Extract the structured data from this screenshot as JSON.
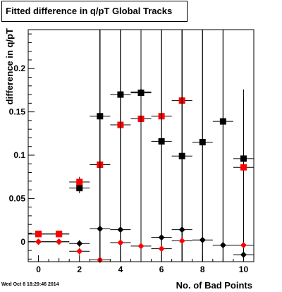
{
  "chart_data": {
    "type": "scatter",
    "title": "Fitted difference in q/pT  Global Tracks",
    "xlabel": "No. of Bad Points",
    "ylabel": "difference in q/pT",
    "xlim": [
      -0.5,
      10.5
    ],
    "ylim": [
      -0.023,
      0.245
    ],
    "xticks": [
      0,
      2,
      4,
      6,
      8,
      10
    ],
    "yticks": [
      0,
      0.05,
      0.1,
      0.15,
      0.2
    ],
    "ytick_labels": [
      "0",
      "0.05",
      "0.1",
      "0.15",
      "0.2"
    ],
    "grid": false,
    "series": [
      {
        "marker": "square",
        "color": "#000000",
        "points": [
          {
            "x": 0,
            "y": 0.009,
            "ex": 0.5,
            "ey": 0.002
          },
          {
            "x": 1,
            "y": 0.009,
            "ex": 0.5,
            "ey": 0.002
          },
          {
            "x": 2,
            "y": 0.062,
            "ex": 0.5,
            "ey": 0.006
          },
          {
            "x": 3,
            "y": 0.145,
            "ex": 0.5,
            "ey": 0.3
          },
          {
            "x": 4,
            "y": 0.17,
            "ex": 0.5,
            "ey": 0.3
          },
          {
            "x": 5,
            "y": 0.172,
            "ex": 0.5,
            "ey": 0.3
          },
          {
            "x": 6,
            "y": 0.116,
            "ex": 0.5,
            "ey": 0.3
          },
          {
            "x": 7,
            "y": 0.099,
            "ex": 0.5,
            "ey": 0.3
          },
          {
            "x": 8,
            "y": 0.115,
            "ex": 0.5,
            "ey": 0.3
          },
          {
            "x": 9,
            "y": 0.139,
            "ex": 0.5,
            "ey": 0.3
          },
          {
            "x": 10,
            "y": 0.096,
            "ex": 0.5,
            "ey": 0.08
          }
        ]
      },
      {
        "marker": "square",
        "color": "#ff0000",
        "points": [
          {
            "x": 0,
            "y": 0.009,
            "ex": 0.5,
            "ey": 0.002
          },
          {
            "x": 1,
            "y": 0.009,
            "ex": 0.5,
            "ey": 0.002
          },
          {
            "x": 2,
            "y": 0.069,
            "ex": 0.5,
            "ey": 0.006
          },
          {
            "x": 3,
            "y": 0.089,
            "ex": 0.5,
            "ey": 0.3
          },
          {
            "x": 4,
            "y": 0.135,
            "ex": 0.5,
            "ey": 0.3
          },
          {
            "x": 5,
            "y": 0.142,
            "ex": 0.5,
            "ey": 0.3
          },
          {
            "x": 6,
            "y": 0.145,
            "ex": 0.5,
            "ey": 0.3
          },
          {
            "x": 7,
            "y": 0.163,
            "ex": 0.5,
            "ey": 0.3
          },
          {
            "x": 10,
            "y": 0.086,
            "ex": 0.5,
            "ey": 0.08
          }
        ]
      },
      {
        "marker": "diamond",
        "color": "#000000",
        "points": [
          {
            "x": 0,
            "y": 0.0,
            "ex": 0.5,
            "ey": 0.001
          },
          {
            "x": 1,
            "y": 0.0,
            "ex": 0.5,
            "ey": 0.001
          },
          {
            "x": 2,
            "y": -0.002,
            "ex": 0.5,
            "ey": 0.004
          },
          {
            "x": 3,
            "y": 0.015,
            "ex": 0.5,
            "ey": 0.3
          },
          {
            "x": 4,
            "y": 0.014,
            "ex": 0.5,
            "ey": 0.3
          },
          {
            "x": 5,
            "y": 0.173,
            "ex": 0.5,
            "ey": 0.3
          },
          {
            "x": 6,
            "y": 0.005,
            "ex": 0.5,
            "ey": 0.3
          },
          {
            "x": 7,
            "y": 0.014,
            "ex": 0.5,
            "ey": 0.3
          },
          {
            "x": 8,
            "y": 0.002,
            "ex": 0.5,
            "ey": 0.3
          },
          {
            "x": 9,
            "y": -0.004,
            "ex": 0.5,
            "ey": 0.3
          },
          {
            "x": 10,
            "y": -0.015,
            "ex": 0.5,
            "ey": 0.02
          }
        ]
      },
      {
        "marker": "diamond",
        "color": "#ff0000",
        "points": [
          {
            "x": 0,
            "y": 0.0,
            "ex": 0.5,
            "ey": 0.001
          },
          {
            "x": 1,
            "y": 0.0,
            "ex": 0.5,
            "ey": 0.001
          },
          {
            "x": 2,
            "y": -0.011,
            "ex": 0.5,
            "ey": 0.004
          },
          {
            "x": 3,
            "y": -0.021,
            "ex": 0.5,
            "ey": 0.3
          },
          {
            "x": 4,
            "y": -0.001,
            "ex": 0.5,
            "ey": 0.3
          },
          {
            "x": 5,
            "y": -0.005,
            "ex": 0.5,
            "ey": 0.3
          },
          {
            "x": 6,
            "y": -0.008,
            "ex": 0.5,
            "ey": 0.3
          },
          {
            "x": 7,
            "y": 0.001,
            "ex": 0.5,
            "ey": 0.3
          },
          {
            "x": 10,
            "y": -0.004,
            "ex": 0.5,
            "ey": 0.02
          }
        ]
      }
    ]
  },
  "footer": {
    "timestamp": "Wed Oct  8 18:29:46 2014"
  }
}
